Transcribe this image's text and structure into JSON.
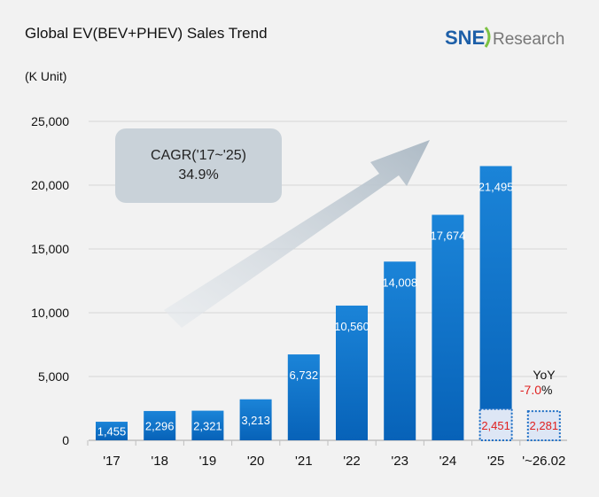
{
  "header": {
    "logo_text": "SNE Research"
  },
  "chart_data": {
    "type": "bar",
    "title": "Global EV(BEV+PHEV) Sales Trend",
    "ylabel": "(K Unit)",
    "xlabel": "",
    "ylim": [
      0,
      25000
    ],
    "yticks": [
      0,
      5000,
      10000,
      15000,
      20000,
      25000
    ],
    "ytick_labels": [
      "0",
      "5,000",
      "10,000",
      "15,000",
      "20,000",
      "25,000"
    ],
    "categories": [
      "'17",
      "'18",
      "'19",
      "'20",
      "'21",
      "'22",
      "'23",
      "'24",
      "'25",
      "'~26.02"
    ],
    "values": [
      1455,
      2296,
      2321,
      3213,
      6732,
      10560,
      14008,
      17674,
      21495,
      null
    ],
    "value_labels": [
      "1,455",
      "2,296",
      "2,321",
      "3,213",
      "6,732",
      "10,560",
      "14,008",
      "17,674",
      "21,495",
      ""
    ],
    "ytd_comparison": {
      "values": [
        2451,
        2281
      ],
      "labels": [
        "2,451",
        "2,281"
      ],
      "categories": [
        "'25",
        "'~26.02"
      ],
      "yoy_label": "YoY",
      "yoy_value": "-7.0",
      "yoy_unit": "%"
    },
    "annotation": {
      "line1": "CAGR('17~'25)",
      "line2": "34.9%"
    },
    "grid": true,
    "colors": {
      "bar": "#0a6cc4",
      "ytd_fill": "#dde6f5",
      "ytd_border": "#1a6cc4",
      "negative": "#e0201f"
    }
  }
}
